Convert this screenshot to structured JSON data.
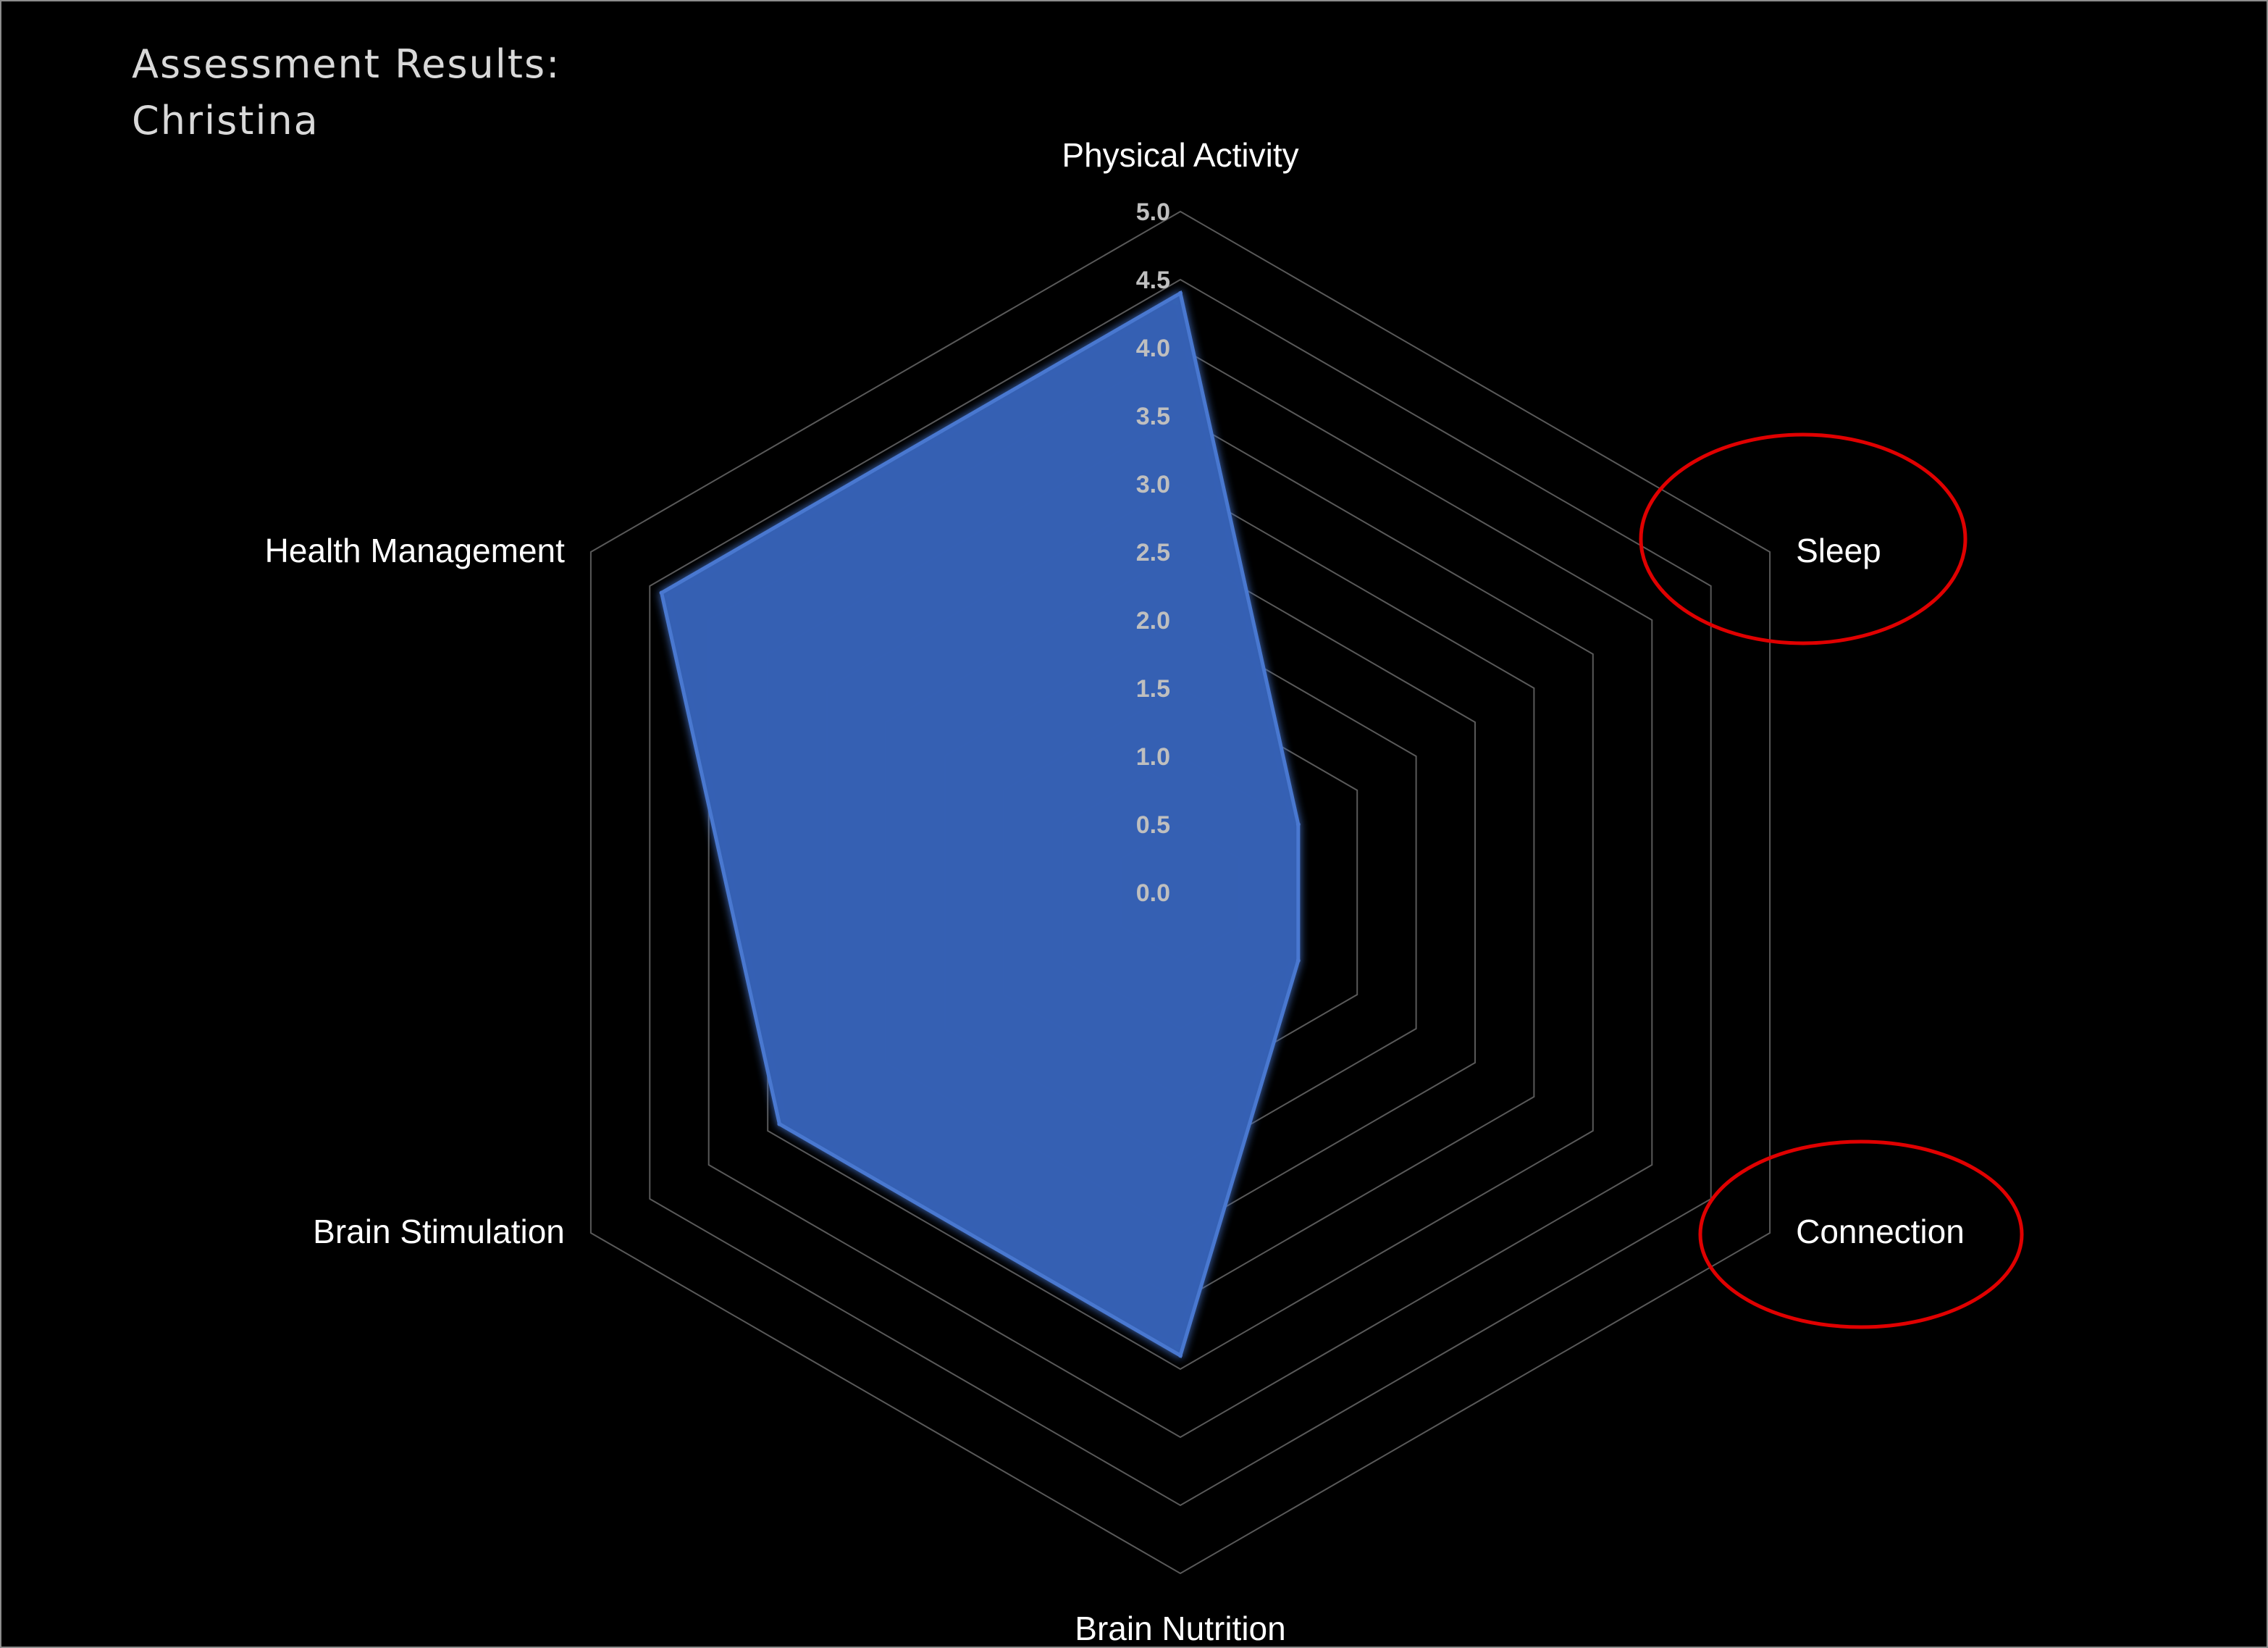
{
  "title": {
    "line1": "Assessment Results:",
    "line2": "Christina"
  },
  "chart_data": {
    "type": "radar",
    "title": "Assessment Results: Christina",
    "categories": [
      "Physical Activity",
      "Sleep",
      "Connection",
      "Brain Nutrition",
      "Brain Stimulation",
      "Health Management"
    ],
    "series": [
      {
        "values": [
          4.4,
          1.0,
          1.0,
          3.4,
          3.4,
          4.4
        ]
      }
    ],
    "rlim": [
      0,
      5
    ],
    "ticks": [
      "0.0",
      "0.5",
      "1.0",
      "1.5",
      "2.0",
      "2.5",
      "3.0",
      "3.5",
      "4.0",
      "4.5",
      "5.0"
    ],
    "grid": true,
    "colors": {
      "fill": "#3561b4",
      "stroke": "#4a78d0",
      "grid": "#595959",
      "highlight": "#e00000"
    },
    "highlighted_categories": [
      "Sleep",
      "Connection"
    ]
  }
}
